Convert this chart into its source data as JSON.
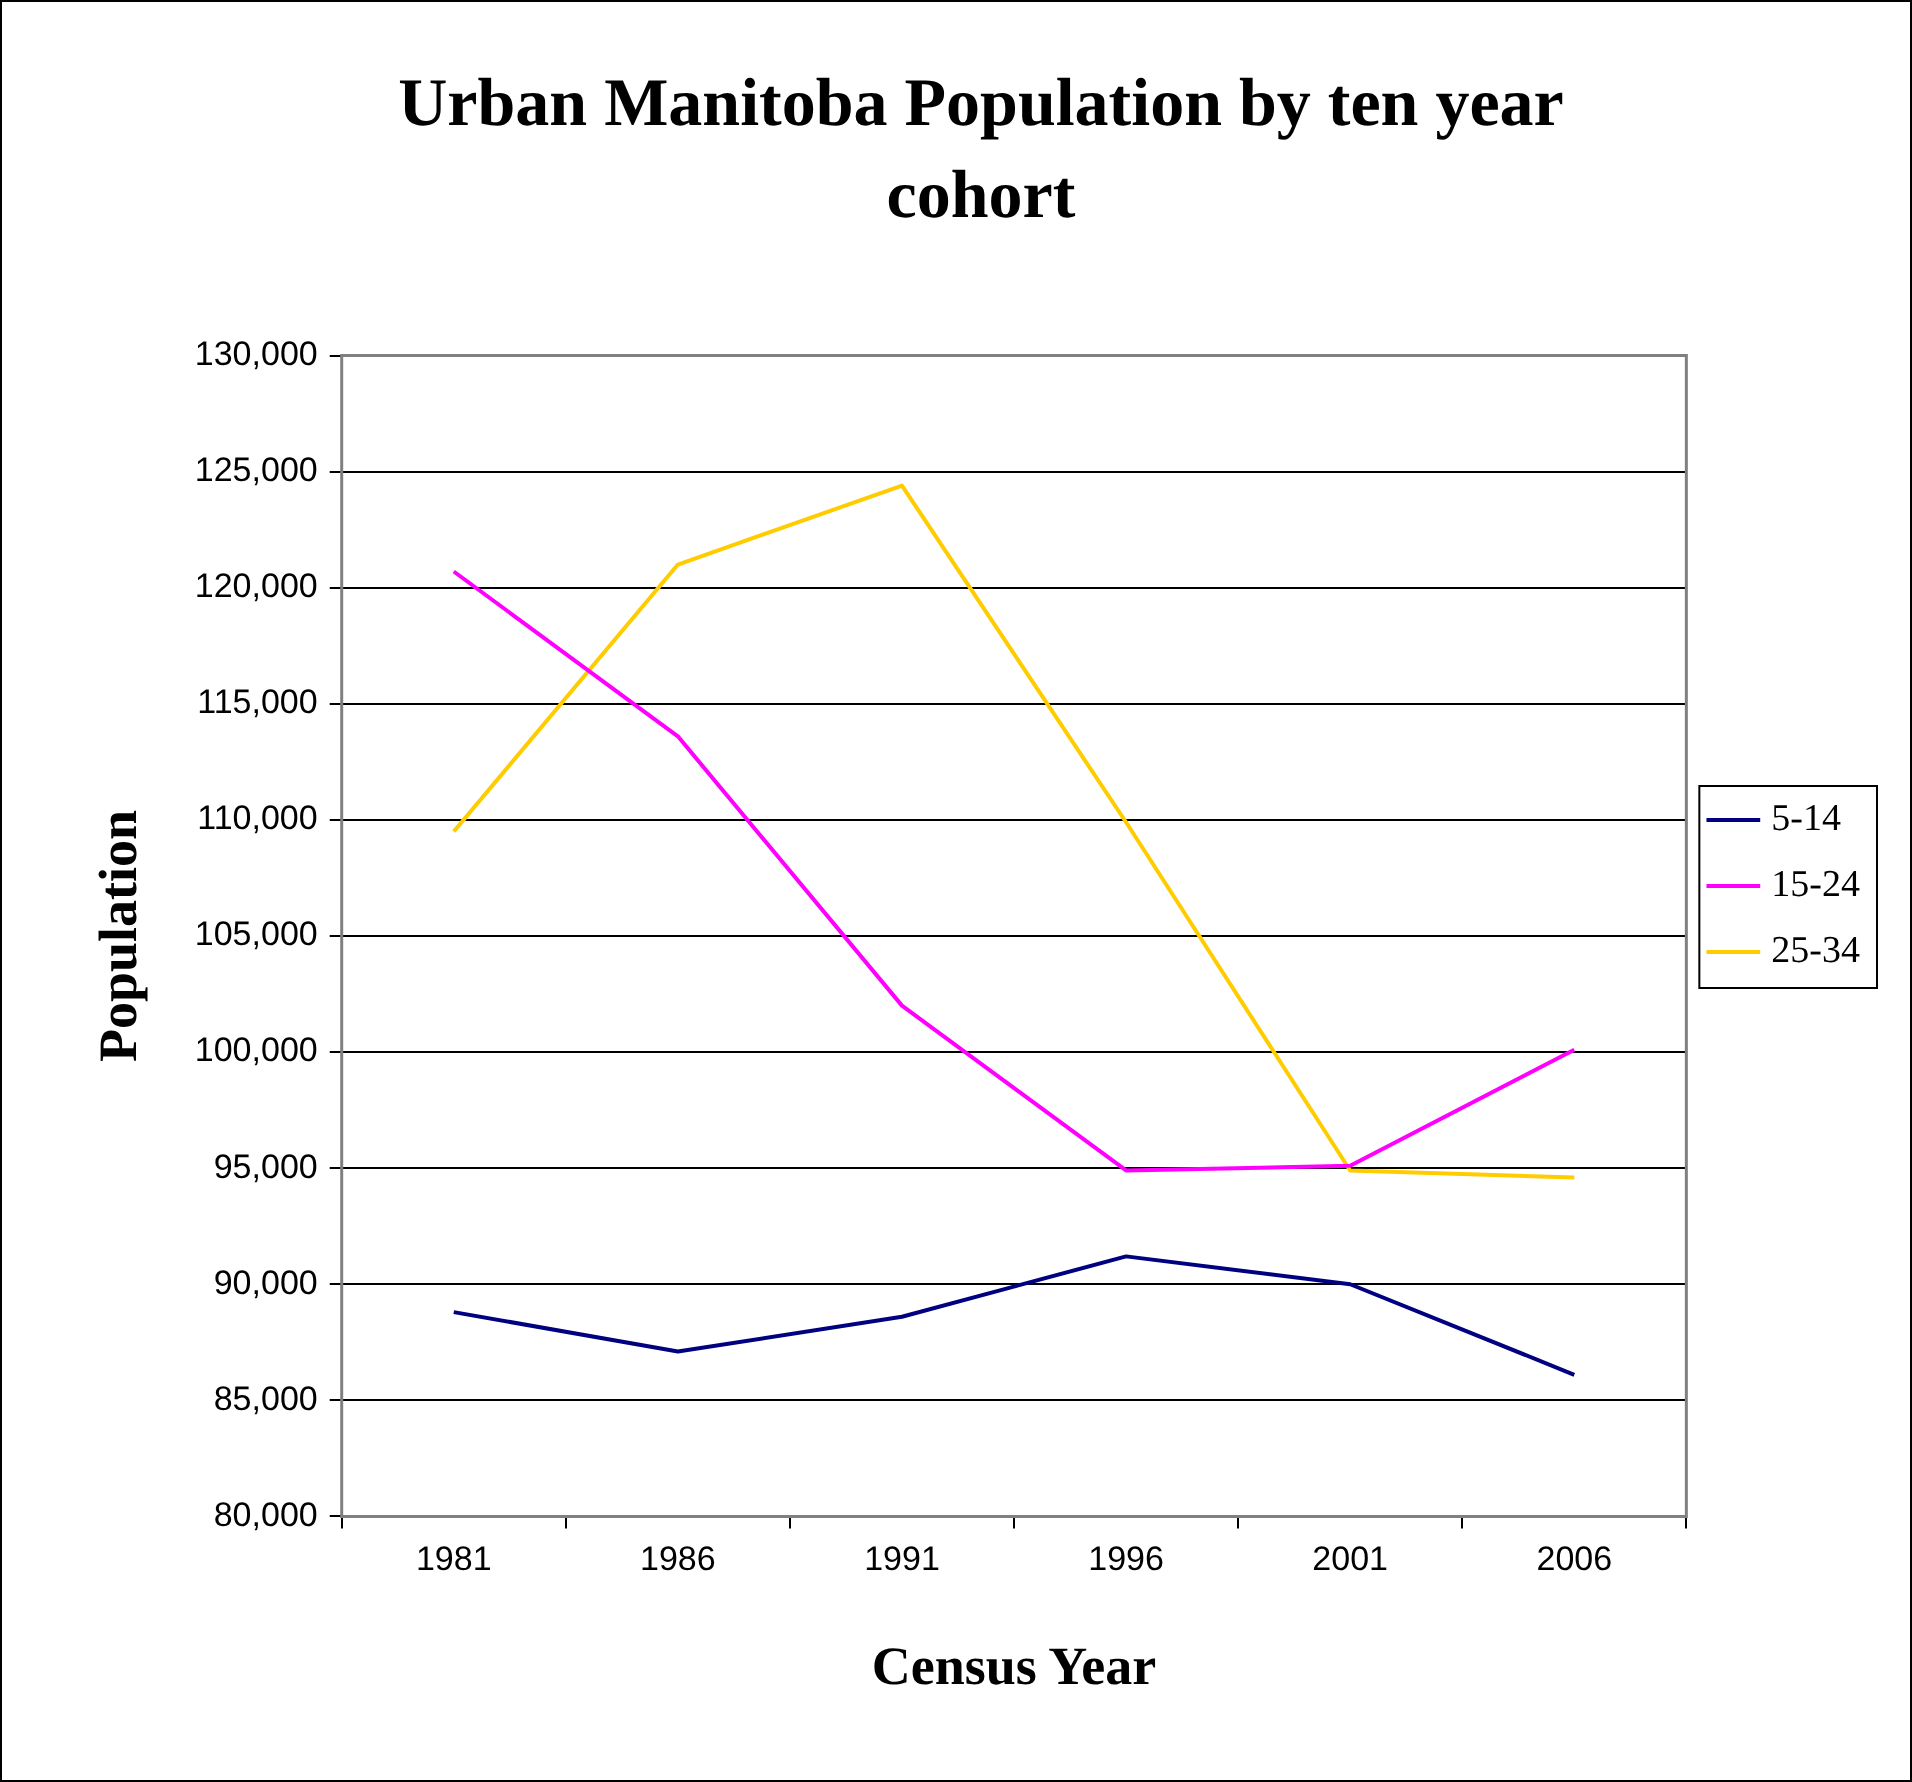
{
  "chart_data": {
    "type": "line",
    "title": "Urban Manitoba Population by ten year cohort",
    "xlabel": "Census Year",
    "ylabel": "Population",
    "categories": [
      "1981",
      "1986",
      "1991",
      "1996",
      "2001",
      "2006"
    ],
    "series": [
      {
        "name": "5-14",
        "color": "#000080",
        "values": [
          88800,
          87100,
          88600,
          91200,
          90000,
          86100
        ]
      },
      {
        "name": "15-24",
        "color": "#ff00ff",
        "values": [
          120700,
          113600,
          102000,
          94900,
          95100,
          100100
        ]
      },
      {
        "name": "25-34",
        "color": "#ffcc00",
        "values": [
          109500,
          121000,
          124400,
          109900,
          94900,
          94600
        ]
      }
    ],
    "ylim": [
      80000,
      130000
    ],
    "yticks": [
      {
        "value": 80000,
        "label": "80,000"
      },
      {
        "value": 85000,
        "label": "85,000"
      },
      {
        "value": 90000,
        "label": "90,000"
      },
      {
        "value": 95000,
        "label": "95,000"
      },
      {
        "value": 100000,
        "label": "100,000"
      },
      {
        "value": 105000,
        "label": "105,000"
      },
      {
        "value": 110000,
        "label": "110,000"
      },
      {
        "value": 115000,
        "label": "115,000"
      },
      {
        "value": 120000,
        "label": "120,000"
      },
      {
        "value": 125000,
        "label": "125,000"
      },
      {
        "value": 130000,
        "label": "130,000"
      }
    ],
    "grid": "y",
    "legend": "right",
    "marker": "none",
    "line_style": "solid"
  }
}
